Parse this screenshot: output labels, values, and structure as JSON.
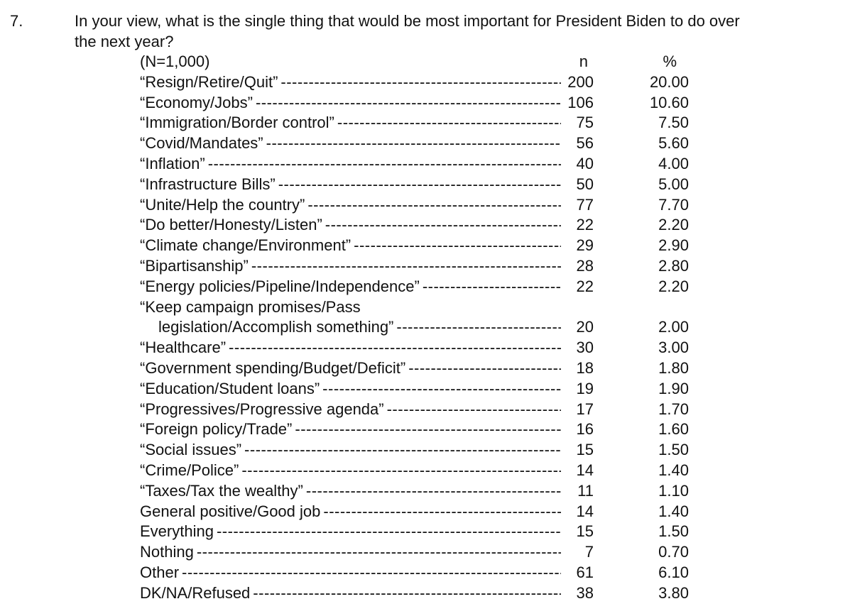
{
  "question": {
    "number": "7.",
    "line1": "In your view, what is the single thing that would be most important for President Biden to do over",
    "line2": "the next year?"
  },
  "table": {
    "sample_label": "(N=1,000)",
    "col_n": "n",
    "col_pct": "%",
    "rows": [
      {
        "label": "“Resign/Retire/Quit”",
        "n": "200",
        "pct": "20.00"
      },
      {
        "label": "“Economy/Jobs”",
        "n": "106",
        "pct": "10.60"
      },
      {
        "label": "“Immigration/Border control”",
        "n": "75",
        "pct": "7.50"
      },
      {
        "label": "“Covid/Mandates”",
        "n": "56",
        "pct": "5.60"
      },
      {
        "label": "“Inflation”",
        "n": "40",
        "pct": "4.00"
      },
      {
        "label": "“Infrastructure Bills”",
        "n": "50",
        "pct": "5.00"
      },
      {
        "label": "“Unite/Help the country”",
        "n": "77",
        "pct": "7.70"
      },
      {
        "label": "“Do better/Honesty/Listen”",
        "n": "22",
        "pct": "2.20"
      },
      {
        "label": "“Climate change/Environment”",
        "n": "29",
        "pct": "2.90"
      },
      {
        "label": "“Bipartisanship”",
        "n": "28",
        "pct": "2.80"
      },
      {
        "label": "“Energy policies/Pipeline/Independence”",
        "n": "22",
        "pct": "2.20"
      },
      {
        "label": "“Keep campaign promises/Pass",
        "label2": "legislation/Accomplish something”",
        "n": "20",
        "pct": "2.00"
      },
      {
        "label": "“Healthcare”",
        "n": "30",
        "pct": "3.00"
      },
      {
        "label": "“Government spending/Budget/Deficit”",
        "n": "18",
        "pct": "1.80"
      },
      {
        "label": "“Education/Student loans”",
        "n": "19",
        "pct": "1.90"
      },
      {
        "label": "“Progressives/Progressive agenda”",
        "n": "17",
        "pct": "1.70"
      },
      {
        "label": "“Foreign policy/Trade”",
        "n": "16",
        "pct": "1.60"
      },
      {
        "label": "“Social issues”",
        "n": "15",
        "pct": "1.50"
      },
      {
        "label": "“Crime/Police”",
        "n": "14",
        "pct": "1.40"
      },
      {
        "label": "“Taxes/Tax the wealthy”",
        "n": "11",
        "pct": "1.10"
      },
      {
        "label": "General positive/Good job",
        "n": "14",
        "pct": "1.40"
      },
      {
        "label": "Everything",
        "n": "15",
        "pct": "1.50"
      },
      {
        "label": "Nothing",
        "n": "7",
        "pct": "0.70"
      },
      {
        "label": "Other",
        "n": "61",
        "pct": "6.10"
      },
      {
        "label": "DK/NA/Refused",
        "n": "38",
        "pct": "3.80"
      }
    ]
  }
}
